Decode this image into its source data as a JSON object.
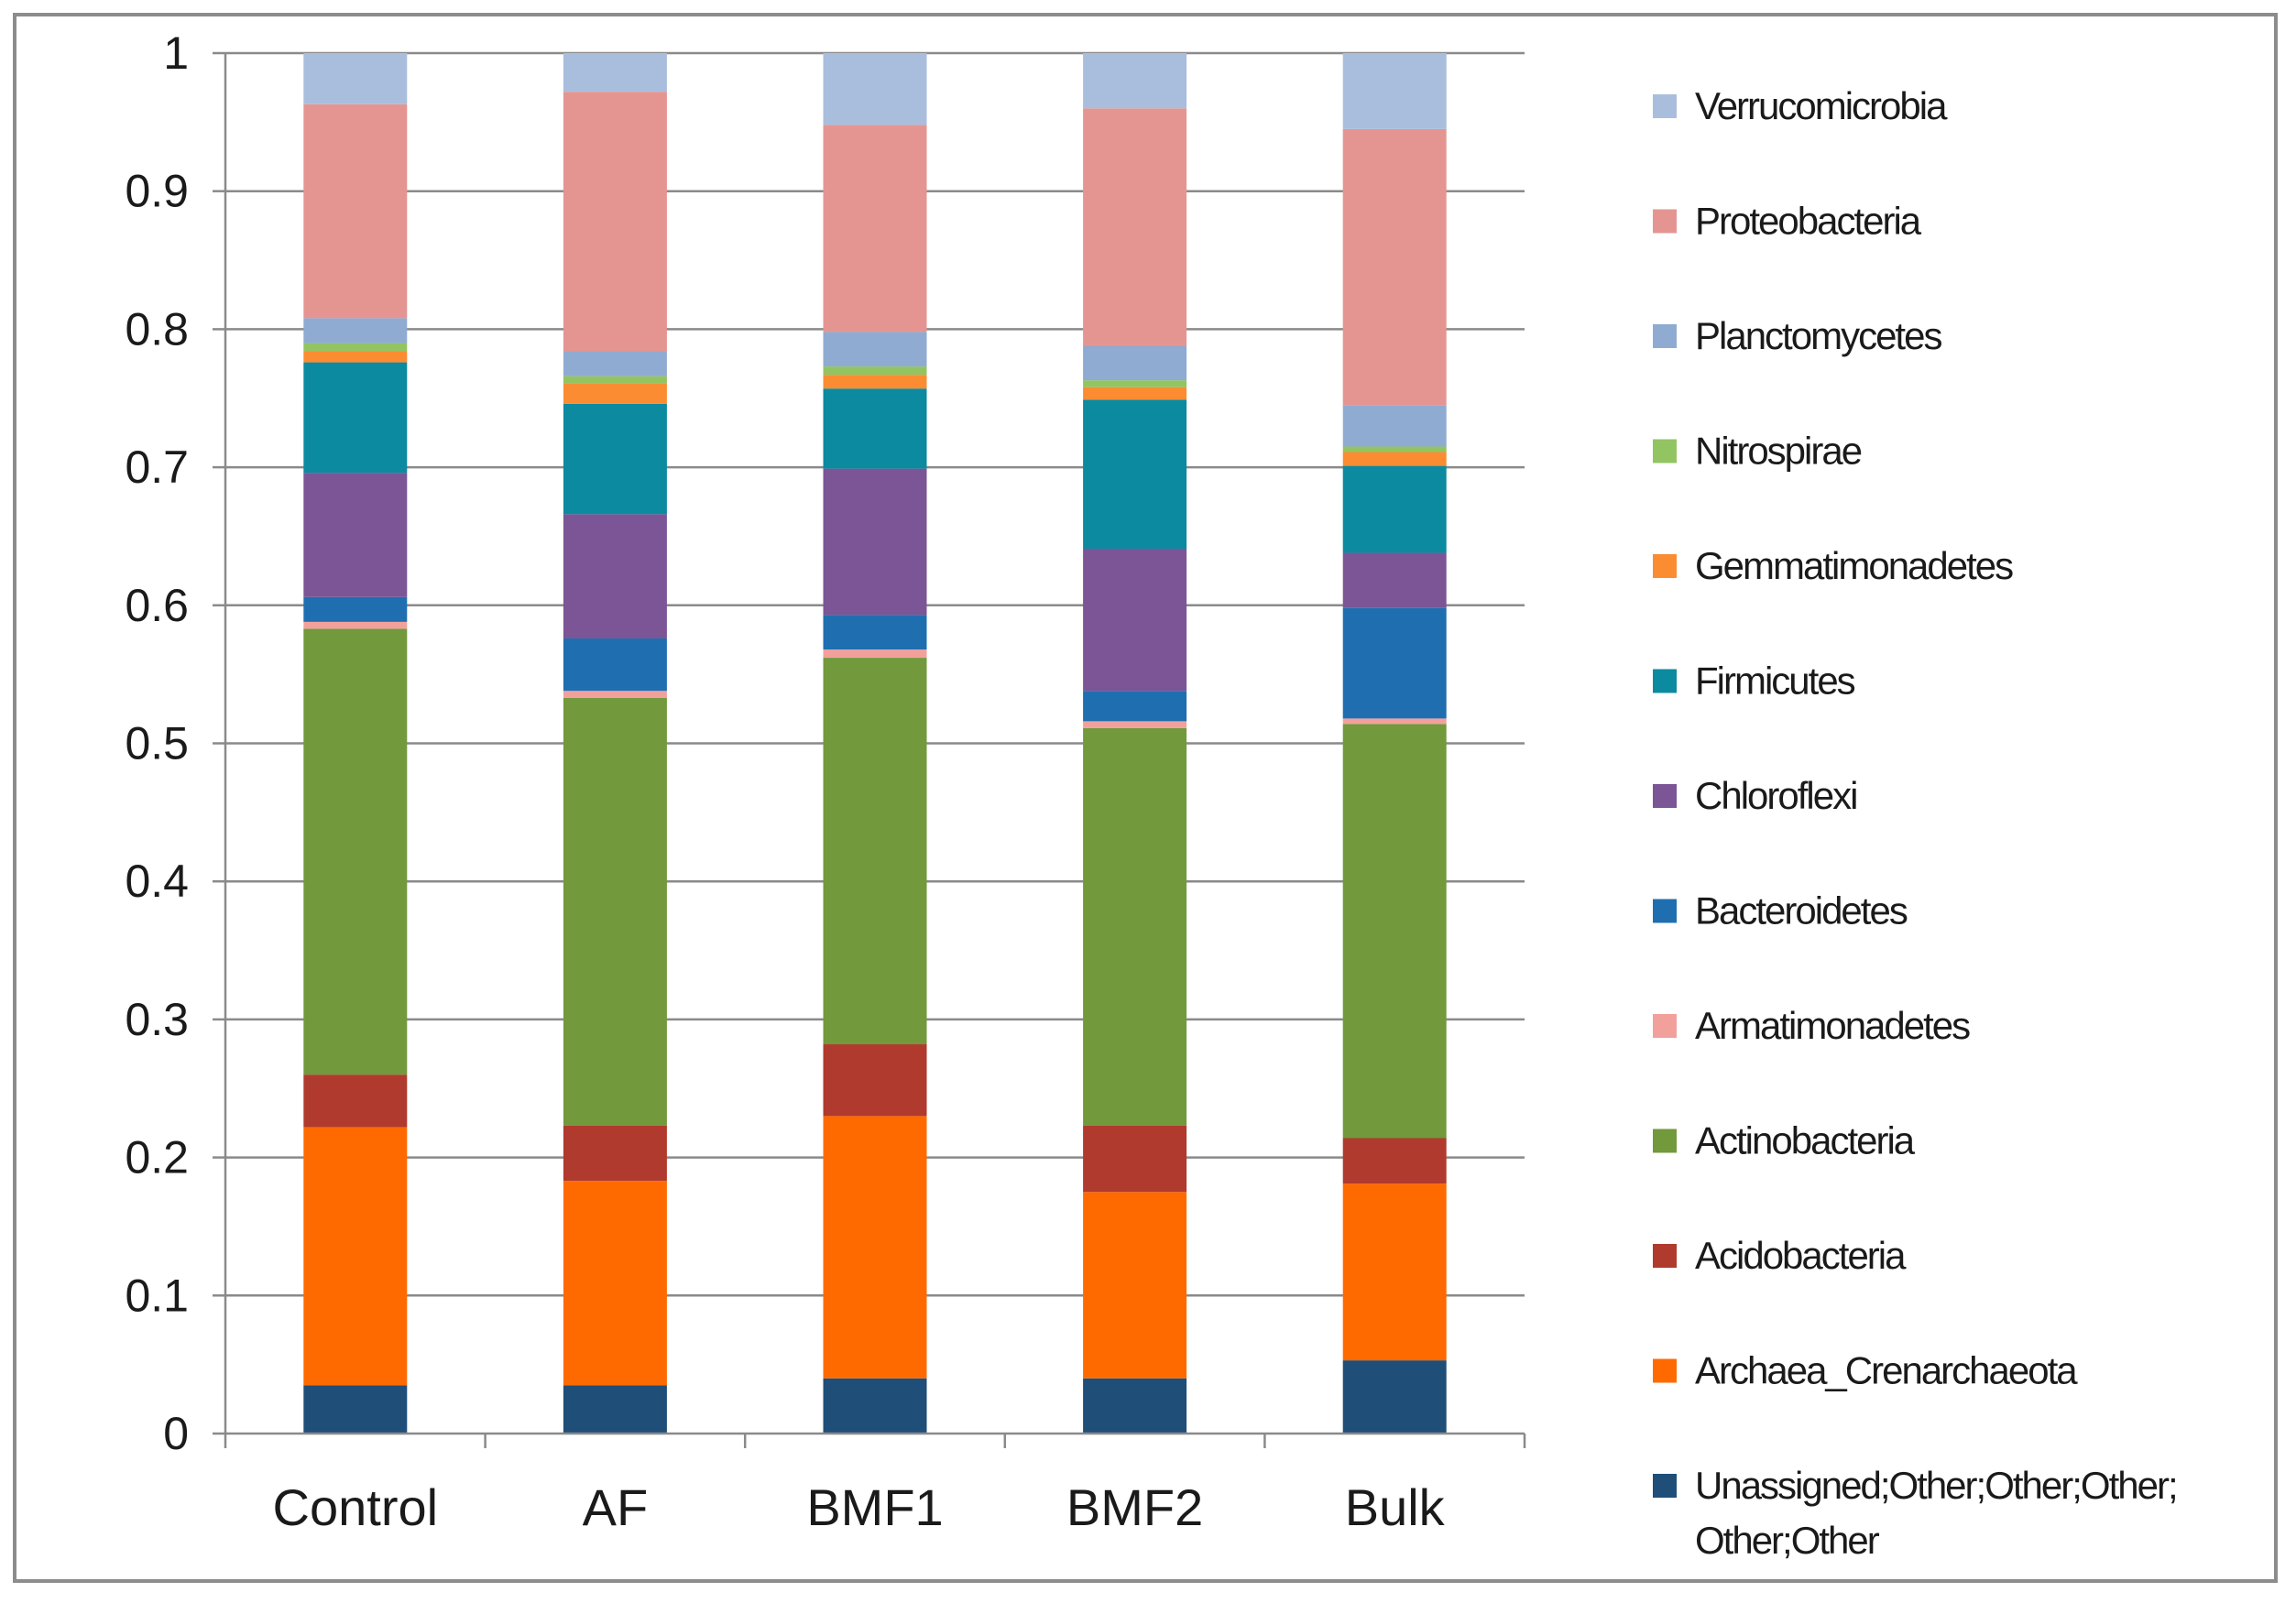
{
  "chart_data": {
    "type": "bar",
    "stacked": true,
    "title": "",
    "xlabel": "",
    "ylabel": "",
    "ylim": [
      0,
      1
    ],
    "yticks": [
      "0",
      "0.1",
      "0.2",
      "0.3",
      "0.4",
      "0.5",
      "0.6",
      "0.7",
      "0.8",
      "0.9",
      "1"
    ],
    "grid": true,
    "legend_position": "right",
    "categories": [
      "Control",
      "AF",
      "BMF1",
      "BMF2",
      "Bulk"
    ],
    "series": [
      {
        "name": "Unassigned;Other;Other;Other;",
        "name_line2": "Other;Other",
        "color": "#1f4e79",
        "values": [
          0.035,
          0.035,
          0.04,
          0.04,
          0.053
        ]
      },
      {
        "name": "Archaea_Crenarchaeota",
        "color": "#ff6a00",
        "values": [
          0.187,
          0.148,
          0.19,
          0.135,
          0.128
        ]
      },
      {
        "name": "Acidobacteria",
        "color": "#b03a2e",
        "values": [
          0.038,
          0.04,
          0.052,
          0.048,
          0.033
        ]
      },
      {
        "name": "Actinobacteria",
        "color": "#72993c",
        "values": [
          0.323,
          0.31,
          0.28,
          0.288,
          0.3
        ]
      },
      {
        "name": "Armatimonadetes",
        "color": "#f2a09c",
        "values": [
          0.005,
          0.005,
          0.006,
          0.005,
          0.004
        ]
      },
      {
        "name": "Bacteroidetes",
        "color": "#1f6fb0",
        "values": [
          0.018,
          0.038,
          0.025,
          0.022,
          0.08
        ]
      },
      {
        "name": "Chloroflexi",
        "color": "#7b5596",
        "values": [
          0.09,
          0.09,
          0.106,
          0.103,
          0.04
        ]
      },
      {
        "name": "Firmicutes",
        "color": "#0c8aa0",
        "values": [
          0.08,
          0.08,
          0.058,
          0.108,
          0.063
        ]
      },
      {
        "name": "Gemmatimonadetes",
        "color": "#fb8c32",
        "values": [
          0.008,
          0.015,
          0.01,
          0.009,
          0.01
        ]
      },
      {
        "name": "Nitrospirae",
        "color": "#93c462",
        "values": [
          0.006,
          0.005,
          0.006,
          0.005,
          0.004
        ]
      },
      {
        "name": "Planctomycetes",
        "color": "#8fabd2",
        "values": [
          0.018,
          0.018,
          0.025,
          0.025,
          0.03
        ]
      },
      {
        "name": "Proteobacteria",
        "color": "#e59591",
        "values": [
          0.155,
          0.188,
          0.15,
          0.172,
          0.2
        ]
      },
      {
        "name": "Verrucomicrobia",
        "color": "#a9bedd",
        "values": [
          0.037,
          0.028,
          0.052,
          0.04,
          0.055
        ]
      }
    ]
  }
}
